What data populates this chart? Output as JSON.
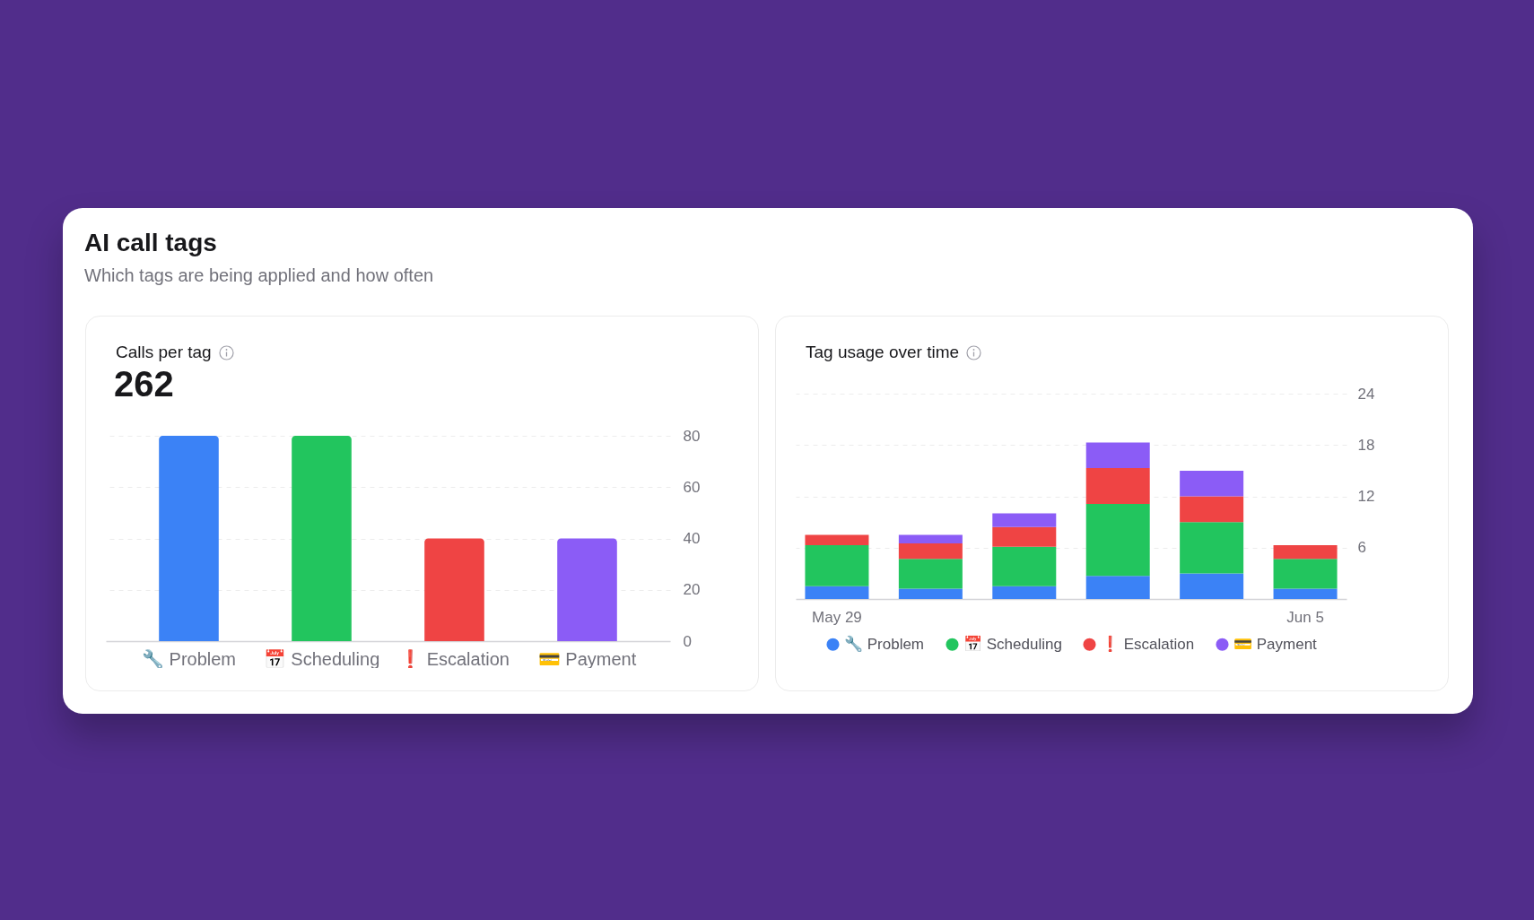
{
  "chart_data": [
    {
      "type": "other",
      "title": "AI call tags",
      "subtitle": "Which tags are being applied and how often"
    },
    {
      "type": "bar",
      "title": "Calls per tag",
      "subtitle": "262",
      "categories": [
        "🔧 Problem",
        "📅 Scheduling",
        "❗ Escalation",
        "💳 Payment"
      ],
      "values": [
        80,
        80,
        40,
        40
      ],
      "colors": [
        "#3b82f6",
        "#22c55e",
        "#ef4444",
        "#8b5cf6"
      ],
      "ylim": [
        0,
        80
      ],
      "yticks": [
        0,
        20,
        40,
        60,
        80
      ],
      "grid": "y"
    },
    {
      "type": "bar",
      "title": "Tag usage over time",
      "categories": [
        "May 29",
        null,
        null,
        null,
        null,
        "Jun 5"
      ],
      "stacked": true,
      "series": [
        {
          "name": "🔧 Problem",
          "color": "#3b82f6",
          "values": [
            1.5,
            1.2,
            1.5,
            2.7,
            3.0,
            1.2
          ]
        },
        {
          "name": "📅 Scheduling",
          "color": "#22c55e",
          "values": [
            4.8,
            3.5,
            4.6,
            8.4,
            6.0,
            3.5
          ]
        },
        {
          "name": "❗ Escalation",
          "color": "#ef4444",
          "values": [
            1.2,
            1.8,
            2.3,
            4.2,
            3.0,
            1.6
          ]
        },
        {
          "name": "💳 Payment",
          "color": "#8b5cf6",
          "values": [
            null,
            1.0,
            1.6,
            3.0,
            3.0,
            null
          ]
        }
      ],
      "ylim": [
        0,
        24
      ],
      "yticks": [
        6,
        12,
        18,
        24
      ],
      "grid": "y",
      "legend": "bottom"
    }
  ]
}
